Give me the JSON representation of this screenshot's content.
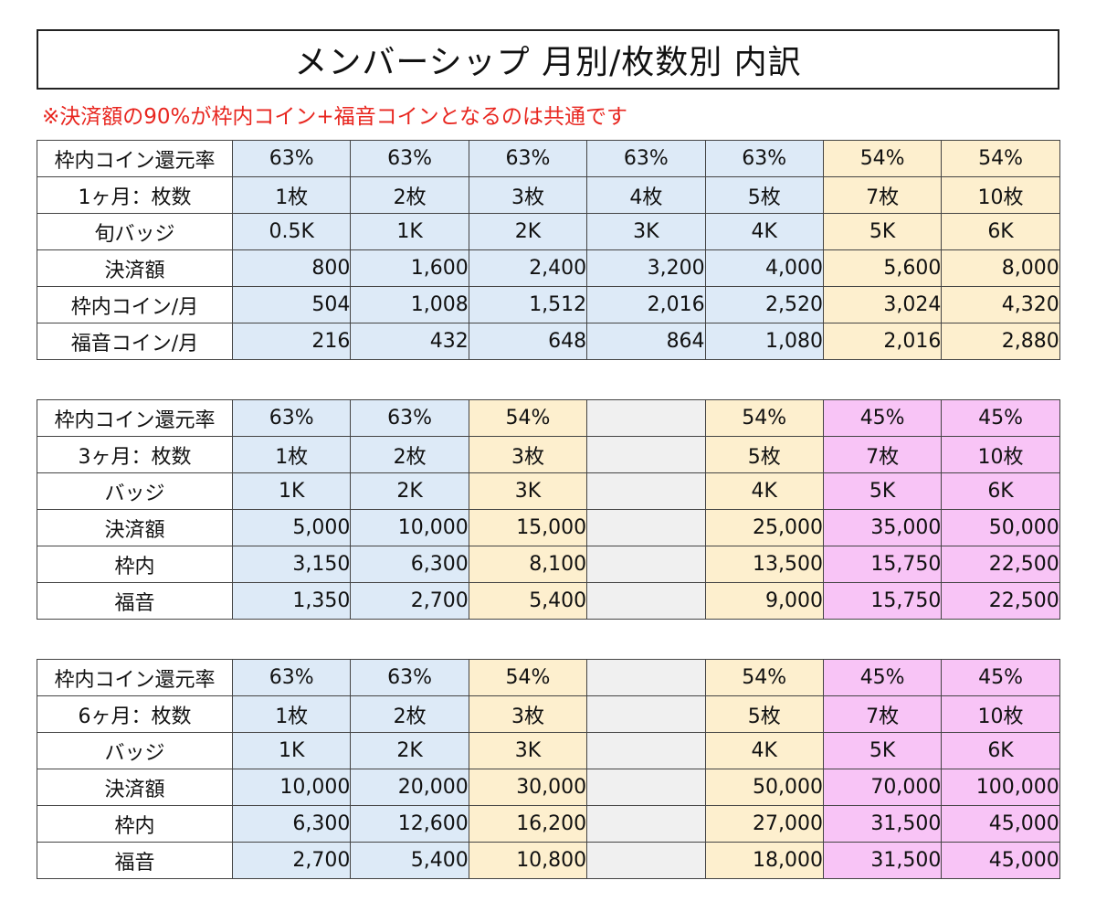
{
  "title": "メンバーシップ 月別/枚数別 内訳",
  "note": "※決済額の90%が枠内コイン+福音コインとなるのは共通です",
  "colors": {
    "blue": "#ddeaf7",
    "yellow": "#fdefce",
    "pink": "#f8c4f6",
    "empty": "#f0f0f0",
    "note": "#e8261f"
  },
  "tables": [
    {
      "rows": [
        {
          "label": "枠内コイン還元率",
          "cells": [
            "63%",
            "63%",
            "63%",
            "63%",
            "63%",
            "54%",
            "54%"
          ]
        },
        {
          "label": "1ヶ月：枚数",
          "cells": [
            "1枚",
            "2枚",
            "3枚",
            "4枚",
            "5枚",
            "7枚",
            "10枚"
          ]
        },
        {
          "label": "旬バッジ",
          "cells": [
            "0.5K",
            "1K",
            "2K",
            "3K",
            "4K",
            "5K",
            "6K"
          ]
        },
        {
          "label": "決済額",
          "cells": [
            "800",
            "1,600",
            "2,400",
            "3,200",
            "4,000",
            "5,600",
            "8,000"
          ]
        },
        {
          "label": "枠内コイン/月",
          "cells": [
            "504",
            "1,008",
            "1,512",
            "2,016",
            "2,520",
            "3,024",
            "4,320"
          ]
        },
        {
          "label": "福音コイン/月",
          "cells": [
            "216",
            "432",
            "648",
            "864",
            "1,080",
            "2,016",
            "2,880"
          ]
        }
      ]
    },
    {
      "rows": [
        {
          "label": "枠内コイン還元率",
          "cells": [
            "63%",
            "63%",
            "54%",
            "",
            "54%",
            "45%",
            "45%"
          ]
        },
        {
          "label": "3ヶ月：枚数",
          "cells": [
            "1枚",
            "2枚",
            "3枚",
            "",
            "5枚",
            "7枚",
            "10枚"
          ]
        },
        {
          "label": "バッジ",
          "cells": [
            "1K",
            "2K",
            "3K",
            "",
            "4K",
            "5K",
            "6K"
          ]
        },
        {
          "label": "決済額",
          "cells": [
            "5,000",
            "10,000",
            "15,000",
            "",
            "25,000",
            "35,000",
            "50,000"
          ]
        },
        {
          "label": "枠内",
          "cells": [
            "3,150",
            "6,300",
            "8,100",
            "",
            "13,500",
            "15,750",
            "22,500"
          ]
        },
        {
          "label": "福音",
          "cells": [
            "1,350",
            "2,700",
            "5,400",
            "",
            "9,000",
            "15,750",
            "22,500"
          ]
        }
      ]
    },
    {
      "rows": [
        {
          "label": "枠内コイン還元率",
          "cells": [
            "63%",
            "63%",
            "54%",
            "",
            "54%",
            "45%",
            "45%"
          ]
        },
        {
          "label": "6ヶ月：枚数",
          "cells": [
            "1枚",
            "2枚",
            "3枚",
            "",
            "5枚",
            "7枚",
            "10枚"
          ]
        },
        {
          "label": "バッジ",
          "cells": [
            "1K",
            "2K",
            "3K",
            "",
            "4K",
            "5K",
            "6K"
          ]
        },
        {
          "label": "決済額",
          "cells": [
            "10,000",
            "20,000",
            "30,000",
            "",
            "50,000",
            "70,000",
            "100,000"
          ]
        },
        {
          "label": "枠内",
          "cells": [
            "6,300",
            "12,600",
            "16,200",
            "",
            "27,000",
            "31,500",
            "45,000"
          ]
        },
        {
          "label": "福音",
          "cells": [
            "2,700",
            "5,400",
            "10,800",
            "",
            "18,000",
            "31,500",
            "45,000"
          ]
        }
      ]
    }
  ]
}
